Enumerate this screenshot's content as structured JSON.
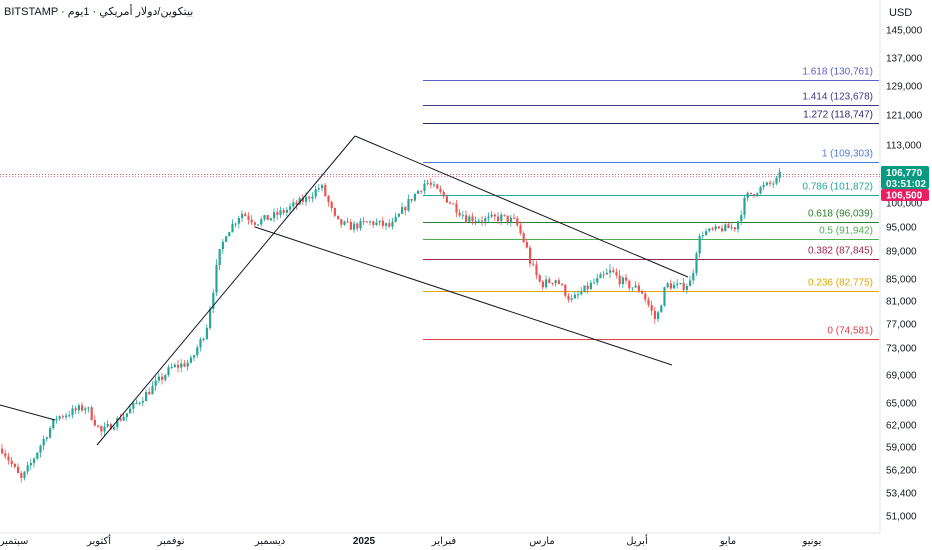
{
  "header": {
    "symbol_line": "BITSTAMP · بيتكوين/دولار أمريكي · 1يوم",
    "currency": "USD"
  },
  "chart_data": {
    "type": "candlestick",
    "y_ticks": [
      "145,000",
      "137,000",
      "129,000",
      "121,000",
      "113,000",
      "100,000",
      "95,000",
      "89,000",
      "85,000",
      "81,000",
      "77,000",
      "73,000",
      "69,000",
      "65,000",
      "62,000",
      "59,000",
      "56,200",
      "53,400",
      "51,000"
    ],
    "x_ticks": [
      "سبتمبر",
      "أكتوبر",
      "نوفمبر",
      "ديسمبر",
      "2025",
      "فبراير",
      "مارس",
      "أبريل",
      "مايو",
      "يونيو"
    ],
    "current_price": "106,770",
    "countdown": "03:51:02",
    "alert_price": "106,500",
    "fib_levels": [
      {
        "label": "1.618 (130,761)",
        "price": 130761,
        "color": "#5b5fc7"
      },
      {
        "label": "1.414 (123,678)",
        "price": 123678,
        "color": "#3d3a8c"
      },
      {
        "label": "1.272 (118,747)",
        "price": 118747,
        "color": "#2b2a6b"
      },
      {
        "label": "1 (109,303)",
        "price": 109303,
        "color": "#4a7fdb"
      },
      {
        "label": "0.786 (101,872)",
        "price": 101872,
        "color": "#26a69a"
      },
      {
        "label": "0.618 (96,039)",
        "price": 96039,
        "color": "#2e7d32"
      },
      {
        "label": "0.5 (91,942)",
        "price": 91942,
        "color": "#4caf50"
      },
      {
        "label": "0.382 (87,845)",
        "price": 87845,
        "color": "#a0244a"
      },
      {
        "label": "0.236 (82,775)",
        "price": 82775,
        "color": "#e0a800"
      },
      {
        "label": "0 (74,581)",
        "price": 74581,
        "color": "#e0404a"
      }
    ],
    "colors": {
      "up": "#26a69a",
      "down": "#ef5350",
      "price_badge": "#089981",
      "alert_badge": "#e91e63"
    }
  }
}
